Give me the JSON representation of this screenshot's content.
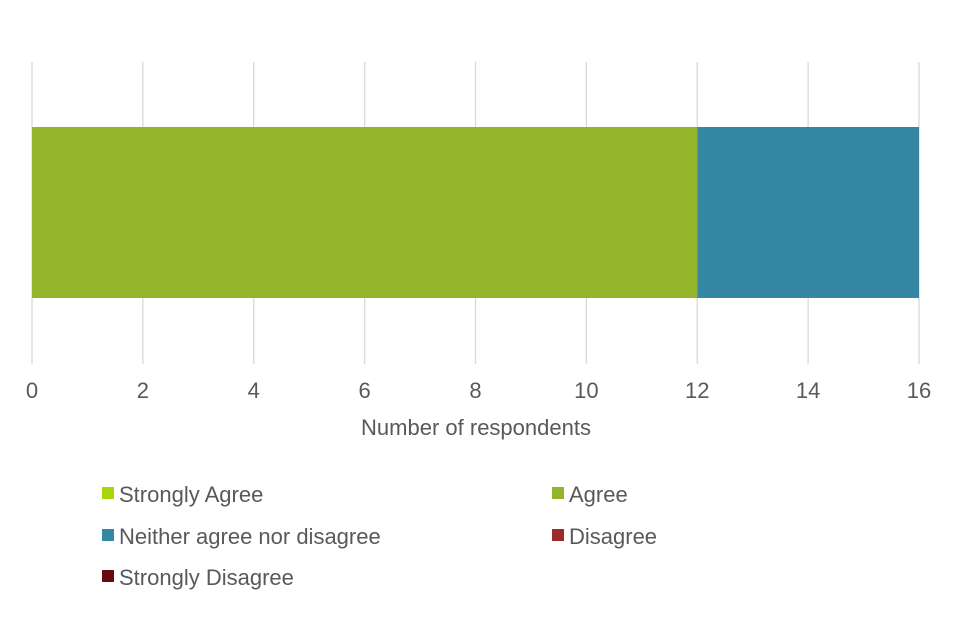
{
  "chart_data": {
    "type": "bar",
    "orientation": "horizontal",
    "stacked": true,
    "title": "",
    "xlabel": "Number of respondents",
    "ylabel": "",
    "xlim": [
      0,
      16
    ],
    "xticks": [
      "0",
      "2",
      "4",
      "6",
      "8",
      "10",
      "12",
      "14",
      "16"
    ],
    "grid": "vertical",
    "legend_position": "bottom",
    "categories": [
      ""
    ],
    "series": [
      {
        "name": "Strongly Agree",
        "color": "#a6d608",
        "values": [
          0
        ]
      },
      {
        "name": "Agree",
        "color": "#92b52b",
        "values": [
          12
        ]
      },
      {
        "name": "Neither agree nor disagree",
        "color": "#3687a3",
        "values": [
          4
        ]
      },
      {
        "name": "Disagree",
        "color": "#9d2a2a",
        "values": [
          0
        ]
      },
      {
        "name": "Strongly Disagree",
        "color": "#6b0a0a",
        "values": [
          0
        ]
      }
    ]
  }
}
